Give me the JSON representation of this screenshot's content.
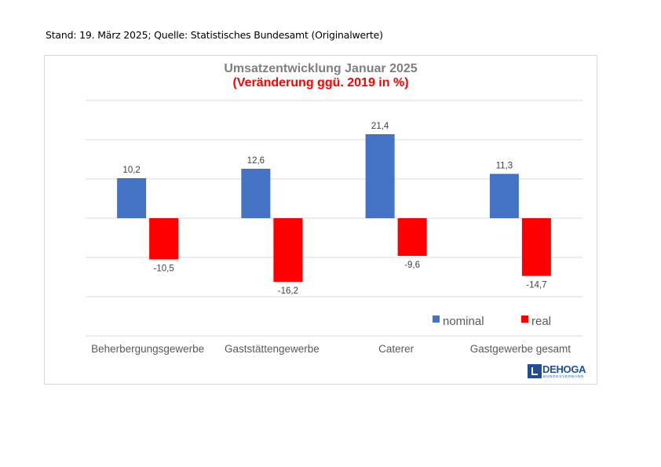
{
  "header": {
    "source_text": "Stand: 19. März 2025; Quelle: Statistisches Bundesamt (Originalwerte)"
  },
  "chart_data": {
    "type": "bar",
    "title": "Umsatzentwicklung Januar 2025",
    "subtitle": "(Veränderung ggü. 2019 in %)",
    "categories": [
      "Beherbergungsgewerbe",
      "Gaststättengewerbe",
      "Caterer",
      "Gastgewerbe gesamt"
    ],
    "series": [
      {
        "name": "nominal",
        "values": [
          10.2,
          12.6,
          21.4,
          11.3
        ],
        "labels": [
          "10,2",
          "12,6",
          "21,4",
          "11,3"
        ],
        "color": "#4472c4"
      },
      {
        "name": "real",
        "values": [
          -10.5,
          -16.2,
          -9.6,
          -14.7
        ],
        "labels": [
          "-10,5",
          "-16,2",
          "-9,6",
          "-14,7"
        ],
        "color": "#ff0000"
      }
    ],
    "ylim": [
      -30,
      30
    ],
    "grid": true,
    "legend_position": "bottom-right"
  },
  "logo": {
    "name": "DEHOGA",
    "tagline": "BUNDESVERBAND"
  },
  "colors": {
    "title": "#7f7f7f",
    "subtitle": "#ff0000",
    "gridline": "#d9d9d9"
  }
}
